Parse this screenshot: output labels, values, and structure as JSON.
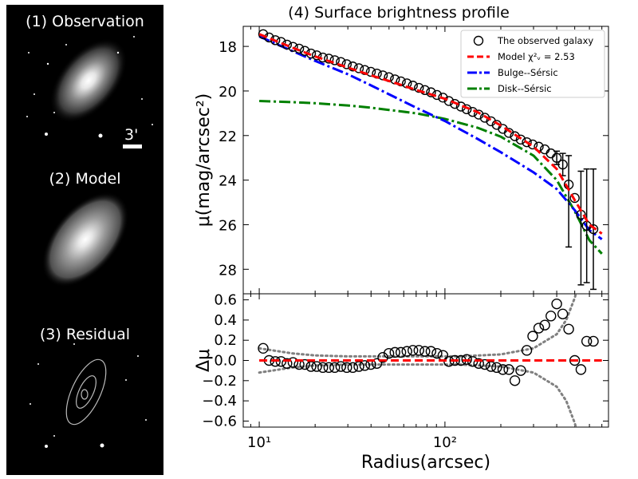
{
  "panels": {
    "observation_title": "(1) Observation",
    "model_title": "(2) Model",
    "residual_title": "(3) Residual",
    "scale_label": "3'"
  },
  "chart_data": [
    {
      "type": "line",
      "title": "(4) Surface brightness profile",
      "xlabel": "Radius(arcsec)",
      "ylabel": "μ(mag/arcsec²)",
      "xscale": "log",
      "xlim": [
        8.2,
        760
      ],
      "ylim": [
        29.1,
        17.1
      ],
      "yticks": [
        18,
        20,
        22,
        24,
        26,
        28
      ],
      "ytick_labels": [
        "18",
        "20",
        "22",
        "24",
        "26",
        "28"
      ],
      "xticks": [
        10,
        100
      ],
      "xtick_labels": [
        "10¹",
        "10²"
      ],
      "legend": {
        "placement": "top-right",
        "entries": [
          {
            "label": "The observed galaxy",
            "style": "circle"
          },
          {
            "label": "Model χ²ᵥ = 2.53",
            "style": "dashed",
            "color": "#ff0000"
          },
          {
            "label": "Bulge--Sérsic",
            "style": "dashdot",
            "color": "#0000ff"
          },
          {
            "label": "Disk--Sérsic",
            "style": "dashdot",
            "color": "#008000"
          }
        ]
      },
      "observed": {
        "r": [
          10.5,
          11.3,
          12.2,
          13.1,
          14.1,
          15.2,
          16.4,
          17.6,
          19.0,
          20.4,
          22.0,
          23.7,
          25.5,
          27.5,
          29.6,
          31.9,
          34.4,
          37.0,
          39.9,
          43.0,
          46.3,
          49.9,
          53.8,
          57.9,
          62.4,
          67.2,
          72.4,
          78.0,
          84.1,
          90.6,
          97.6,
          105,
          113,
          122,
          131,
          141,
          152,
          164,
          177,
          190,
          205,
          221,
          238,
          256,
          276,
          297,
          320,
          345,
          372,
          400,
          431,
          464,
          500,
          540,
          580,
          630
        ],
        "mu": [
          17.45,
          17.6,
          17.72,
          17.8,
          17.92,
          18.02,
          18.1,
          18.2,
          18.32,
          18.4,
          18.5,
          18.55,
          18.62,
          18.7,
          18.8,
          18.9,
          18.98,
          19.06,
          19.14,
          19.22,
          19.3,
          19.38,
          19.48,
          19.57,
          19.66,
          19.76,
          19.86,
          19.96,
          20.06,
          20.18,
          20.3,
          20.45,
          20.58,
          20.7,
          20.82,
          20.94,
          21.06,
          21.2,
          21.36,
          21.52,
          21.7,
          21.88,
          22.03,
          22.18,
          22.3,
          22.4,
          22.5,
          22.62,
          22.8,
          23.0,
          23.3,
          24.2,
          24.8,
          25.55,
          26.05,
          26.2
        ],
        "err_r": [
          400,
          431,
          464,
          540,
          580,
          630
        ],
        "err_lo": [
          22.7,
          22.8,
          22.9,
          23.6,
          23.5,
          23.5
        ],
        "err_hi": [
          23.3,
          23.8,
          27.0,
          28.7,
          28.6,
          28.9
        ]
      },
      "model": {
        "r": [
          10,
          15,
          20,
          30,
          40,
          50,
          70,
          100,
          150,
          200,
          300,
          400,
          500,
          600,
          700
        ],
        "mu": [
          17.45,
          18.05,
          18.45,
          18.95,
          19.3,
          19.55,
          19.95,
          20.35,
          20.95,
          21.55,
          22.5,
          23.5,
          24.9,
          26.0,
          26.4
        ]
      },
      "bulge": {
        "r": [
          10,
          15,
          20,
          30,
          40,
          50,
          70,
          100,
          150,
          200,
          300,
          400,
          500,
          600,
          700
        ],
        "mu": [
          17.55,
          18.2,
          18.65,
          19.25,
          19.75,
          20.15,
          20.75,
          21.35,
          22.15,
          22.75,
          23.65,
          24.4,
          25.35,
          26.25,
          26.65
        ]
      },
      "disk": {
        "r": [
          10,
          15,
          20,
          30,
          40,
          50,
          70,
          100,
          150,
          200,
          300,
          400,
          500,
          600,
          700
        ],
        "mu": [
          20.45,
          20.5,
          20.55,
          20.65,
          20.75,
          20.85,
          21.0,
          21.25,
          21.65,
          22.05,
          22.9,
          24.0,
          25.4,
          26.7,
          27.3
        ]
      }
    },
    {
      "type": "scatter",
      "ylabel": "Δμ",
      "xlabel": "Radius(arcsec)",
      "xscale": "log",
      "xlim": [
        8.2,
        760
      ],
      "ylim": [
        -0.66,
        0.66
      ],
      "yticks": [
        0.6,
        0.4,
        0.2,
        0.0,
        -0.2,
        -0.4,
        -0.6
      ],
      "ytick_labels": [
        "0.6",
        "0.4",
        "0.2",
        "0.0",
        "−0.2",
        "−0.4",
        "−0.6"
      ],
      "xticks": [
        10,
        100
      ],
      "xtick_labels": [
        "10¹",
        "10²"
      ],
      "residual": {
        "r": [
          10.5,
          11.3,
          12.2,
          13.1,
          14.1,
          15.2,
          16.4,
          17.6,
          19.0,
          20.4,
          22.0,
          23.7,
          25.5,
          27.5,
          29.6,
          31.9,
          34.4,
          37.0,
          39.9,
          43.0,
          46.3,
          49.9,
          53.8,
          57.9,
          62.4,
          67.2,
          72.4,
          78.0,
          84.1,
          90.6,
          97.6,
          105,
          113,
          122,
          131,
          141,
          152,
          164,
          177,
          190,
          205,
          221,
          238,
          256,
          276,
          297,
          320,
          345,
          372,
          400,
          431,
          464,
          500,
          540,
          580,
          630
        ],
        "d": [
          0.12,
          0.0,
          -0.01,
          -0.01,
          -0.03,
          -0.02,
          -0.04,
          -0.04,
          -0.06,
          -0.06,
          -0.07,
          -0.07,
          -0.07,
          -0.06,
          -0.07,
          -0.07,
          -0.06,
          -0.05,
          -0.04,
          -0.03,
          0.03,
          0.07,
          0.08,
          0.08,
          0.09,
          0.1,
          0.1,
          0.09,
          0.09,
          0.07,
          0.05,
          -0.01,
          0.0,
          0.0,
          0.01,
          -0.01,
          -0.03,
          -0.04,
          -0.06,
          -0.07,
          -0.09,
          -0.09,
          -0.2,
          -0.1,
          0.1,
          0.24,
          0.32,
          0.35,
          0.44,
          0.56,
          0.46,
          0.31,
          0.0,
          -0.09,
          0.19,
          0.19
        ],
        "zero_line": 0.0
      },
      "envelope": {
        "r": [
          10,
          15,
          20,
          30,
          50,
          80,
          120,
          200,
          300,
          400,
          450,
          500,
          550
        ],
        "upper": [
          0.12,
          0.07,
          0.05,
          0.04,
          0.04,
          0.04,
          0.04,
          0.06,
          0.12,
          0.26,
          0.4,
          0.62,
          0.9
        ],
        "lower": [
          -0.12,
          -0.07,
          -0.05,
          -0.04,
          -0.04,
          -0.04,
          -0.04,
          -0.06,
          -0.12,
          -0.26,
          -0.4,
          -0.62,
          -0.9
        ]
      }
    }
  ]
}
